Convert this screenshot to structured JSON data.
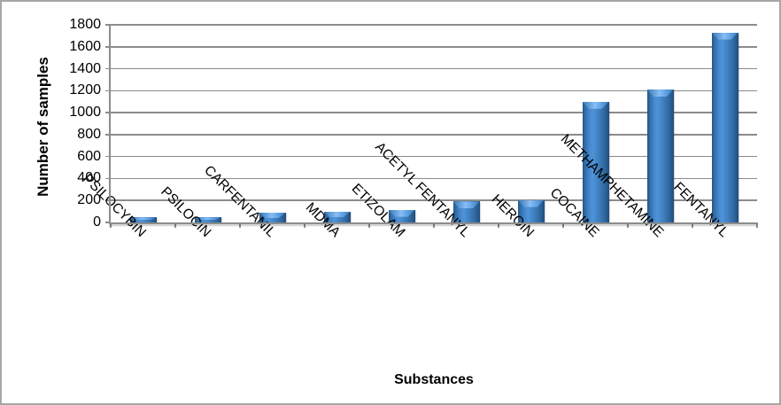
{
  "chart_data": {
    "type": "bar",
    "title": "",
    "xlabel": "Substances",
    "ylabel": "Number of samples",
    "categories": [
      "PSILOCYBIN",
      "PSILOCIN",
      "CARFENTANIL",
      "MDMA",
      "ETIZOLAM",
      "ACETYL FENTANYL",
      "HEROIN",
      "COCAINE",
      "METHAMPHETAMINE",
      "FENTANYL"
    ],
    "values": [
      45,
      45,
      90,
      100,
      115,
      190,
      205,
      1100,
      1210,
      1730
    ],
    "ylim": [
      0,
      1800
    ],
    "yticks": [
      0,
      200,
      400,
      600,
      800,
      1000,
      1200,
      1400,
      1600,
      1800
    ],
    "grid": "horizontal",
    "legend_position": "none",
    "category_label_rotation_deg": 45,
    "bar_color": "#3D7EC1",
    "bar_edge_color": "#1E4C78",
    "gridline_color": "#8C8C8C",
    "axis_color": "#8C8C8C",
    "border_color": "#A6A6A6",
    "background_color": "#FFFFFF",
    "text_color": "#000000"
  }
}
